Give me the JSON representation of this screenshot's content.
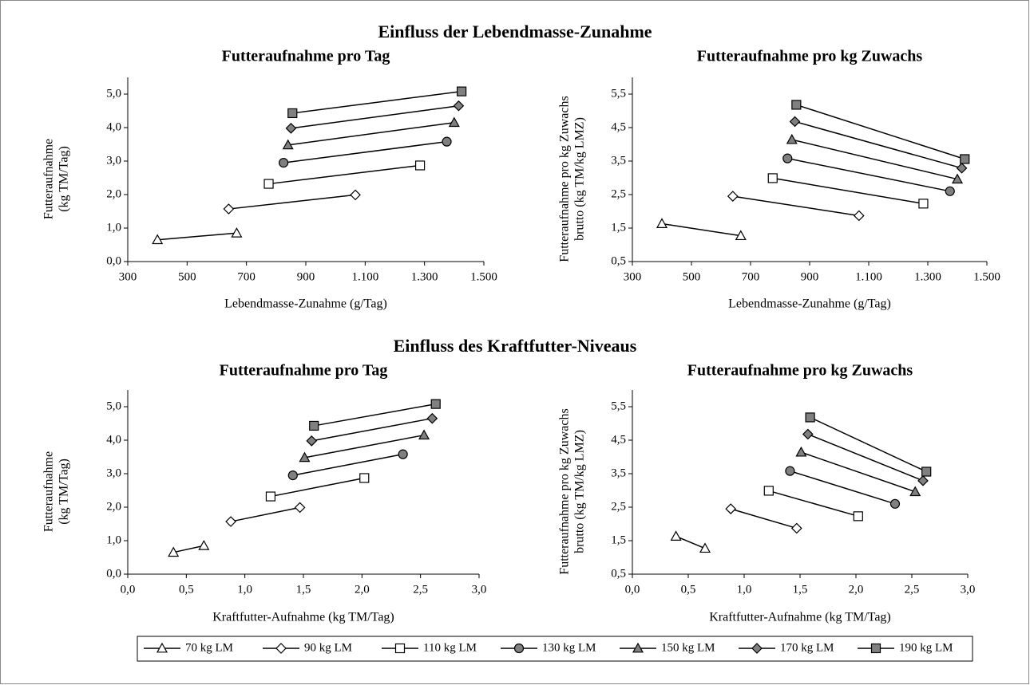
{
  "section_titles": [
    "Einfluss der Lebendmasse-Zunahme",
    "Einfluss des Kraftfutter-Niveaus"
  ],
  "legend": {
    "series": [
      {
        "name": "70 kg LM",
        "marker": "triangle",
        "color": "#ffffff"
      },
      {
        "name": "90 kg LM",
        "marker": "diamond",
        "color": "#ffffff"
      },
      {
        "name": "110 kg LM",
        "marker": "square",
        "color": "#ffffff"
      },
      {
        "name": "130 kg LM",
        "marker": "circle",
        "color": "#808080"
      },
      {
        "name": "150 kg LM",
        "marker": "triangle",
        "color": "#808080"
      },
      {
        "name": "170 kg LM",
        "marker": "diamond",
        "color": "#808080"
      },
      {
        "name": "190 kg LM",
        "marker": "square",
        "color": "#808080"
      }
    ]
  },
  "chart_data": [
    {
      "type": "line",
      "title": "Futteraufnahme pro Tag",
      "xlabel": "Lebendmasse-Zunahme (g/Tag)",
      "ylabel": [
        "Futteraufnahme",
        "(kg TM/Tag)"
      ],
      "xlim": [
        300,
        1500
      ],
      "xticks": [
        300,
        500,
        700,
        900,
        {
          "value": 1100,
          "label": "1.100"
        },
        {
          "value": 1300,
          "label": "1.300"
        },
        {
          "value": 1500,
          "label": "1.500"
        }
      ],
      "ylim": [
        0,
        5.5
      ],
      "yticks": [
        {
          "value": 0,
          "label": "0,0"
        },
        {
          "value": 1,
          "label": "1,0"
        },
        {
          "value": 2,
          "label": "2,0"
        },
        {
          "value": 3,
          "label": "3,0"
        },
        {
          "value": 4,
          "label": "4,0"
        },
        {
          "value": 5,
          "label": "5,0"
        }
      ],
      "series": [
        {
          "x": [
            400,
            667
          ],
          "values": [
            0.65,
            0.85
          ]
        },
        {
          "x": [
            640,
            1067
          ],
          "values": [
            1.57,
            1.99
          ]
        },
        {
          "x": [
            775,
            1285
          ],
          "values": [
            2.32,
            2.87
          ]
        },
        {
          "x": [
            825,
            1375
          ],
          "values": [
            2.95,
            3.58
          ]
        },
        {
          "x": [
            840,
            1400
          ],
          "values": [
            3.48,
            4.15
          ]
        },
        {
          "x": [
            850,
            1415
          ],
          "values": [
            3.98,
            4.65
          ]
        },
        {
          "x": [
            855,
            1425
          ],
          "values": [
            4.43,
            5.08
          ]
        }
      ]
    },
    {
      "type": "line",
      "title": "Futteraufnahme pro kg Zuwachs",
      "xlabel": "Lebendmasse-Zunahme (g/Tag)",
      "ylabel": [
        "Futteraufnahme pro kg Zuwachs",
        "brutto (kg TM/kg LMZ)"
      ],
      "xlim": [
        300,
        1500
      ],
      "xticks": [
        300,
        500,
        700,
        900,
        {
          "value": 1100,
          "label": "1.100"
        },
        {
          "value": 1300,
          "label": "1.300"
        },
        {
          "value": 1500,
          "label": "1.500"
        }
      ],
      "ylim": [
        0.5,
        6.0
      ],
      "yticks": [
        {
          "value": 0.5,
          "label": "0,5"
        },
        {
          "value": 1.5,
          "label": "1,5"
        },
        {
          "value": 2.5,
          "label": "2,5"
        },
        {
          "value": 3.5,
          "label": "3,5"
        },
        {
          "value": 4.5,
          "label": "4,5"
        },
        {
          "value": 5.5,
          "label": "5,5"
        }
      ],
      "series": [
        {
          "x": [
            400,
            667
          ],
          "values": [
            1.63,
            1.27
          ]
        },
        {
          "x": [
            640,
            1067
          ],
          "values": [
            2.45,
            1.87
          ]
        },
        {
          "x": [
            775,
            1285
          ],
          "values": [
            2.99,
            2.23
          ]
        },
        {
          "x": [
            825,
            1375
          ],
          "values": [
            3.58,
            2.6
          ]
        },
        {
          "x": [
            840,
            1400
          ],
          "values": [
            4.14,
            2.96
          ]
        },
        {
          "x": [
            850,
            1415
          ],
          "values": [
            4.68,
            3.29
          ]
        },
        {
          "x": [
            855,
            1425
          ],
          "values": [
            5.18,
            3.56
          ]
        }
      ]
    },
    {
      "type": "line",
      "title": "Futteraufnahme pro Tag",
      "xlabel": "Kraftfutter-Aufnahme (kg TM/Tag)",
      "ylabel": [
        "Futteraufnahme",
        "(kg TM/Tag)"
      ],
      "xlim": [
        0,
        3
      ],
      "xticks": [
        {
          "value": 0,
          "label": "0,0"
        },
        {
          "value": 0.5,
          "label": "0,5"
        },
        {
          "value": 1,
          "label": "1,0"
        },
        {
          "value": 1.5,
          "label": "1,5"
        },
        {
          "value": 2,
          "label": "2,0"
        },
        {
          "value": 2.5,
          "label": "2,5"
        },
        {
          "value": 3,
          "label": "3,0"
        }
      ],
      "ylim": [
        0,
        5.5
      ],
      "yticks": [
        {
          "value": 0,
          "label": "0,0"
        },
        {
          "value": 1,
          "label": "1,0"
        },
        {
          "value": 2,
          "label": "2,0"
        },
        {
          "value": 3,
          "label": "3,0"
        },
        {
          "value": 4,
          "label": "4,0"
        },
        {
          "value": 5,
          "label": "5,0"
        }
      ],
      "series": [
        {
          "x": [
            0.39,
            0.65
          ],
          "values": [
            0.65,
            0.85
          ]
        },
        {
          "x": [
            0.88,
            1.47
          ],
          "values": [
            1.57,
            1.99
          ]
        },
        {
          "x": [
            1.22,
            2.02
          ],
          "values": [
            2.32,
            2.87
          ]
        },
        {
          "x": [
            1.41,
            2.35
          ],
          "values": [
            2.95,
            3.58
          ]
        },
        {
          "x": [
            1.51,
            2.53
          ],
          "values": [
            3.48,
            4.15
          ]
        },
        {
          "x": [
            1.57,
            2.6
          ],
          "values": [
            3.98,
            4.65
          ]
        },
        {
          "x": [
            1.59,
            2.63
          ],
          "values": [
            4.43,
            5.08
          ]
        }
      ]
    },
    {
      "type": "line",
      "title": "Futteraufnahme pro kg Zuwachs",
      "xlabel": "Kraftfutter-Aufnahme (kg TM/Tag)",
      "ylabel": [
        "Futteraufnahme pro kg Zuwachs",
        "brutto (kg TM/kg LMZ)"
      ],
      "xlim": [
        0,
        3
      ],
      "xticks": [
        {
          "value": 0,
          "label": "0,0"
        },
        {
          "value": 0.5,
          "label": "0,5"
        },
        {
          "value": 1,
          "label": "1,0"
        },
        {
          "value": 1.5,
          "label": "1,5"
        },
        {
          "value": 2,
          "label": "2,0"
        },
        {
          "value": 2.5,
          "label": "2,5"
        },
        {
          "value": 3,
          "label": "3,0"
        }
      ],
      "ylim": [
        0.5,
        6.0
      ],
      "yticks": [
        {
          "value": 0.5,
          "label": "0,5"
        },
        {
          "value": 1.5,
          "label": "1,5"
        },
        {
          "value": 2.5,
          "label": "2,5"
        },
        {
          "value": 3.5,
          "label": "3,5"
        },
        {
          "value": 4.5,
          "label": "4,5"
        },
        {
          "value": 5.5,
          "label": "5,5"
        }
      ],
      "series": [
        {
          "x": [
            0.39,
            0.65
          ],
          "values": [
            1.63,
            1.27
          ]
        },
        {
          "x": [
            0.88,
            1.47
          ],
          "values": [
            2.45,
            1.87
          ]
        },
        {
          "x": [
            1.22,
            2.02
          ],
          "values": [
            2.99,
            2.23
          ]
        },
        {
          "x": [
            1.41,
            2.35
          ],
          "values": [
            3.58,
            2.6
          ]
        },
        {
          "x": [
            1.51,
            2.53
          ],
          "values": [
            4.14,
            2.96
          ]
        },
        {
          "x": [
            1.57,
            2.6
          ],
          "values": [
            4.68,
            3.29
          ]
        },
        {
          "x": [
            1.59,
            2.63
          ],
          "values": [
            5.18,
            3.56
          ]
        }
      ]
    }
  ]
}
